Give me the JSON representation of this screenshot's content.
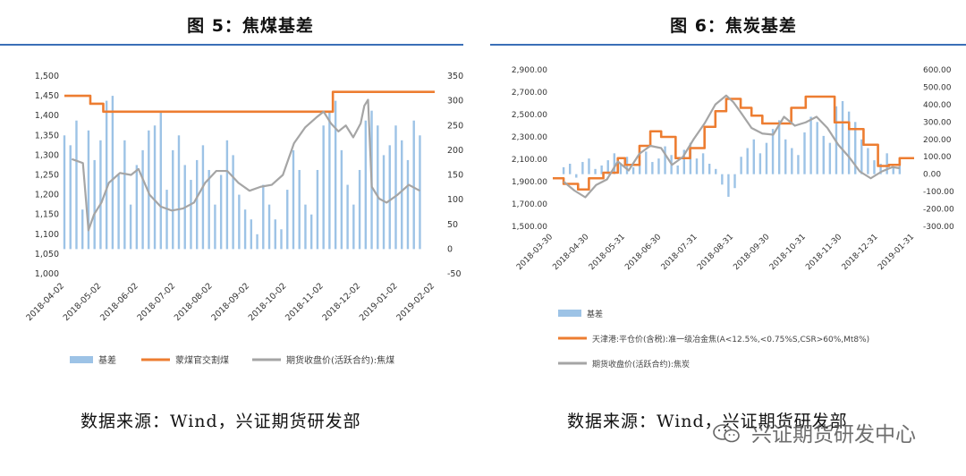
{
  "fig5": {
    "title": "图 5：焦煤基差",
    "source": "数据来源：Wind，兴证期货研发部",
    "legend": [
      "基差",
      "蒙煤官交割煤",
      "期货收盘价(活跃合约):焦煤"
    ]
  },
  "fig6": {
    "title": "图 6：焦炭基差",
    "source": "数据来源：Wind，兴证期货研发部",
    "legend": [
      "基差",
      "天津港:平仓价(含税):准一级冶金焦(A<12.5%,<0.75%S,CSR>60%,Mt8%)",
      "期货收盘价(活跃合约):焦炭"
    ]
  },
  "watermark": "兴证期货研发中心",
  "colors": {
    "basis": "#9dc3e6",
    "spot": "#ed7d31",
    "futures": "#a5a5a5",
    "rule": "#3a6fb7"
  },
  "chart_data": [
    {
      "type": "line",
      "title": "图 5：焦煤基差",
      "left_axis": {
        "ylim": [
          1000,
          1500
        ],
        "ticks": [
          "1,500",
          "1,450",
          "1,400",
          "1,350",
          "1,300",
          "1,250",
          "1,200",
          "1,150",
          "1,100",
          "1,050",
          "1,000"
        ]
      },
      "right_axis": {
        "ylim": [
          -50,
          350
        ],
        "ticks": [
          "350",
          "300",
          "250",
          "200",
          "150",
          "100",
          "50",
          "0",
          "-50"
        ]
      },
      "x_ticks": [
        "2018-04-02",
        "2018-05-02",
        "2018-06-02",
        "2018-07-02",
        "2018-08-02",
        "2018-09-02",
        "2018-10-02",
        "2018-11-02",
        "2018-12-02",
        "2019-01-02",
        "2019-02-02"
      ],
      "series": [
        {
          "name": "蒙煤官交割煤",
          "axis": "left",
          "x": [
            0,
            0.065,
            0.07,
            0.1,
            0.105,
            0.72,
            0.725,
            0.95,
            1.0
          ],
          "values": [
            1450,
            1450,
            1430,
            1430,
            1410,
            1410,
            1460,
            1460,
            1460
          ]
        },
        {
          "name": "期货收盘价(活跃合约):焦煤",
          "axis": "left",
          "x": [
            0.02,
            0.05,
            0.065,
            0.08,
            0.1,
            0.12,
            0.15,
            0.18,
            0.2,
            0.23,
            0.26,
            0.29,
            0.32,
            0.35,
            0.38,
            0.41,
            0.44,
            0.47,
            0.5,
            0.53,
            0.56,
            0.59,
            0.62,
            0.65,
            0.68,
            0.7,
            0.72,
            0.74,
            0.76,
            0.78,
            0.8,
            0.81,
            0.82,
            0.83,
            0.85,
            0.87,
            0.9,
            0.93,
            0.96
          ],
          "values": [
            1290,
            1280,
            1110,
            1150,
            1180,
            1230,
            1255,
            1250,
            1265,
            1200,
            1170,
            1160,
            1165,
            1180,
            1230,
            1260,
            1260,
            1230,
            1210,
            1220,
            1225,
            1250,
            1330,
            1370,
            1395,
            1410,
            1380,
            1360,
            1375,
            1345,
            1380,
            1425,
            1440,
            1220,
            1190,
            1180,
            1200,
            1225,
            1210
          ]
        },
        {
          "name": "基差",
          "axis": "right",
          "kind": "bar",
          "x_start": 0,
          "x_end": 0.96,
          "values": [
            230,
            210,
            260,
            80,
            240,
            180,
            220,
            300,
            310,
            150,
            220,
            90,
            170,
            200,
            240,
            250,
            280,
            120,
            200,
            230,
            170,
            140,
            180,
            210,
            160,
            90,
            150,
            220,
            190,
            110,
            80,
            60,
            30,
            130,
            90,
            60,
            40,
            120,
            200,
            160,
            90,
            70,
            160,
            250,
            280,
            300,
            200,
            130,
            90,
            160,
            260,
            280,
            250,
            190,
            210,
            250,
            220,
            180,
            260,
            230
          ]
        }
      ]
    },
    {
      "type": "line",
      "title": "图 6：焦炭基差",
      "left_axis": {
        "ylim": [
          1500,
          2900
        ],
        "ticks": [
          "2,900.00",
          "2,700.00",
          "2,500.00",
          "2,300.00",
          "2,100.00",
          "1,900.00",
          "1,700.00",
          "1,500.00"
        ]
      },
      "right_axis": {
        "ylim": [
          -300,
          600
        ],
        "ticks": [
          "600.00",
          "500.00",
          "400.00",
          "300.00",
          "200.00",
          "100.00",
          "0.00",
          "-100.00",
          "-200.00",
          "-300.00"
        ]
      },
      "x_ticks": [
        "2018-03-30",
        "2018-04-30",
        "2018-05-31",
        "2018-06-30",
        "2018-07-31",
        "2018-08-31",
        "2018-09-30",
        "2018-10-31",
        "2018-11-30",
        "2018-12-31",
        "2019-01-31"
      ],
      "series": [
        {
          "name": "天津港:平仓价(含税):准一级冶金焦(A<12.5%,<0.75%S,CSR>60%,Mt8%)",
          "axis": "left",
          "x": [
            0,
            0.03,
            0.07,
            0.1,
            0.14,
            0.18,
            0.2,
            0.24,
            0.27,
            0.3,
            0.34,
            0.38,
            0.42,
            0.45,
            0.48,
            0.52,
            0.55,
            0.58,
            0.62,
            0.66,
            0.7,
            0.74,
            0.78,
            0.82,
            0.86,
            0.9,
            0.93,
            0.96,
            1.0
          ],
          "values": [
            1930,
            1880,
            1830,
            1930,
            1980,
            2110,
            2050,
            2220,
            2350,
            2300,
            2110,
            2200,
            2390,
            2530,
            2640,
            2560,
            2490,
            2420,
            2420,
            2560,
            2660,
            2660,
            2430,
            2370,
            2230,
            2040,
            2050,
            2110,
            2110
          ]
        },
        {
          "name": "期货收盘价(活跃合约):焦炭",
          "axis": "left",
          "x": [
            0.03,
            0.06,
            0.09,
            0.12,
            0.15,
            0.18,
            0.21,
            0.24,
            0.27,
            0.3,
            0.33,
            0.36,
            0.39,
            0.42,
            0.45,
            0.48,
            0.5,
            0.52,
            0.55,
            0.58,
            0.61,
            0.64,
            0.67,
            0.7,
            0.73,
            0.76,
            0.79,
            0.82,
            0.85,
            0.88,
            0.91,
            0.94,
            0.96
          ],
          "values": [
            1900,
            1820,
            1760,
            1870,
            1920,
            2080,
            2000,
            2150,
            2220,
            2200,
            2050,
            2120,
            2280,
            2420,
            2590,
            2670,
            2610,
            2520,
            2380,
            2330,
            2320,
            2480,
            2400,
            2430,
            2480,
            2380,
            2230,
            2120,
            1990,
            1930,
            1990,
            2030,
            2020
          ]
        },
        {
          "name": "基差",
          "axis": "right",
          "kind": "bar",
          "x_start": 0.03,
          "x_end": 0.96,
          "values": [
            40,
            60,
            -20,
            70,
            90,
            30,
            50,
            80,
            120,
            60,
            100,
            40,
            80,
            130,
            70,
            90,
            160,
            110,
            50,
            140,
            180,
            90,
            120,
            60,
            30,
            -60,
            -130,
            -80,
            100,
            150,
            200,
            120,
            180,
            260,
            310,
            200,
            150,
            110,
            240,
            330,
            300,
            220,
            180,
            390,
            420,
            360,
            300,
            200,
            150,
            80,
            60,
            120,
            40,
            80
          ]
        }
      ]
    }
  ]
}
